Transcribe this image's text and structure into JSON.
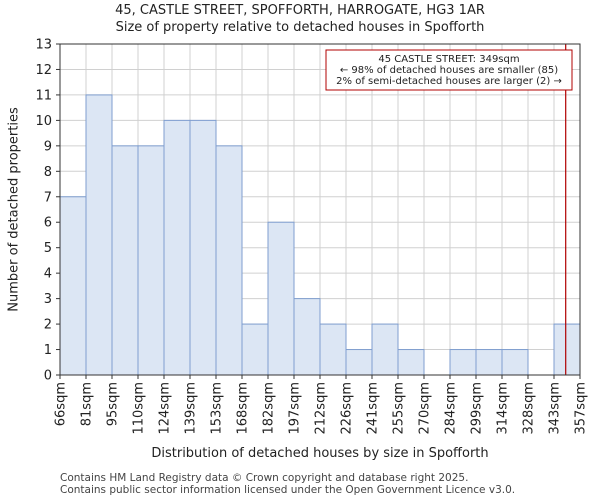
{
  "titles": {
    "line1": "45, CASTLE STREET, SPOFFORTH, HARROGATE, HG3 1AR",
    "line2": "Size of property relative to detached houses in Spofforth"
  },
  "footer": {
    "line1": "Contains HM Land Registry data © Crown copyright and database right 2025.",
    "line2": "Contains public sector information licensed under the Open Government Licence v3.0."
  },
  "chart_data": {
    "type": "bar",
    "bin_edges": [
      66,
      81,
      95,
      110,
      124,
      139,
      153,
      168,
      182,
      197,
      212,
      226,
      241,
      255,
      270,
      284,
      299,
      314,
      328,
      343,
      357
    ],
    "x_tick_labels": [
      "66sqm",
      "81sqm",
      "95sqm",
      "110sqm",
      "124sqm",
      "139sqm",
      "153sqm",
      "168sqm",
      "182sqm",
      "197sqm",
      "212sqm",
      "226sqm",
      "241sqm",
      "255sqm",
      "270sqm",
      "284sqm",
      "299sqm",
      "314sqm",
      "328sqm",
      "343sqm",
      "357sqm"
    ],
    "values": [
      7,
      11,
      9,
      9,
      10,
      10,
      9,
      2,
      6,
      3,
      2,
      1,
      2,
      1,
      0,
      1,
      1,
      1,
      0,
      2
    ],
    "xlabel": "Distribution of detached houses by size in Spofforth",
    "ylabel": "Number of detached properties",
    "ylim": [
      0,
      13
    ],
    "y_ticks": [
      0,
      1,
      2,
      3,
      4,
      5,
      6,
      7,
      8,
      9,
      10,
      11,
      12,
      13
    ],
    "grid": true,
    "bar_color": "#dce6f4",
    "bar_edge_color": "#7f9ecf",
    "marker": {
      "x": 349,
      "color": "#b00000",
      "annotation": [
        "45 CASTLE STREET: 349sqm",
        "← 98% of detached houses are smaller (85)",
        "2% of semi-detached houses are larger (2) →"
      ]
    }
  }
}
